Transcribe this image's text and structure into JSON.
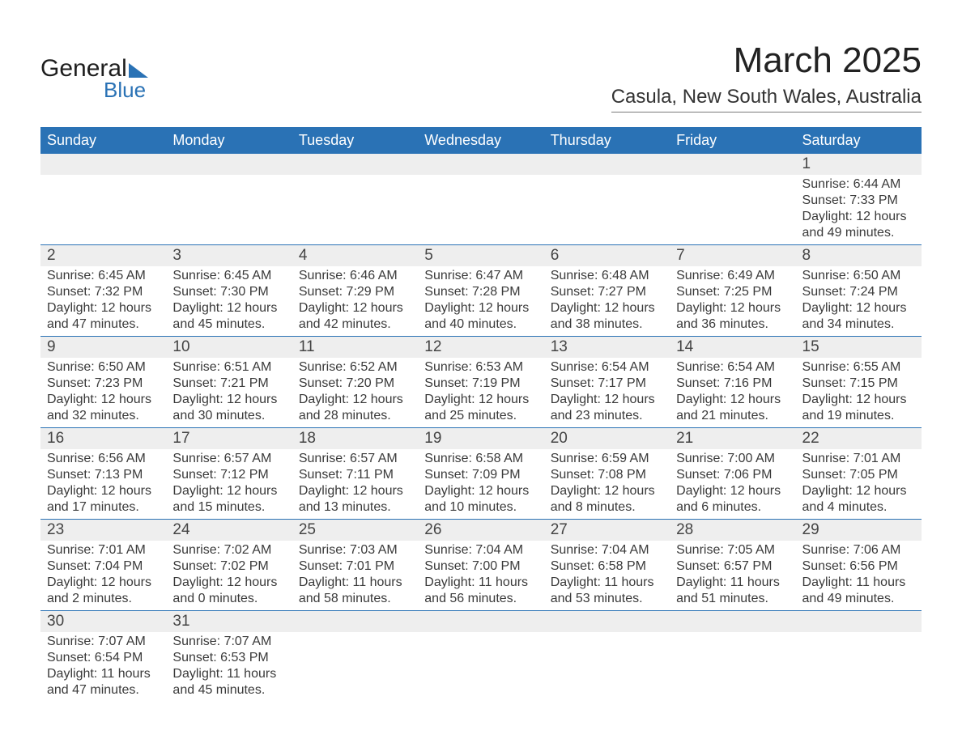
{
  "logo": {
    "text_main": "General",
    "text_sub": "Blue",
    "accent_color": "#2a72b5"
  },
  "title": "March 2025",
  "location": "Casula, New South Wales, Australia",
  "header_bg": "#2a72b5",
  "daynum_bg": "#eeeeee",
  "text_color": "#3a3a3a",
  "day_headers": [
    "Sunday",
    "Monday",
    "Tuesday",
    "Wednesday",
    "Thursday",
    "Friday",
    "Saturday"
  ],
  "weeks": [
    {
      "nums": [
        "",
        "",
        "",
        "",
        "",
        "",
        "1"
      ],
      "cells": [
        {
          "sunrise": "",
          "sunset": "",
          "daylight": ""
        },
        {
          "sunrise": "",
          "sunset": "",
          "daylight": ""
        },
        {
          "sunrise": "",
          "sunset": "",
          "daylight": ""
        },
        {
          "sunrise": "",
          "sunset": "",
          "daylight": ""
        },
        {
          "sunrise": "",
          "sunset": "",
          "daylight": ""
        },
        {
          "sunrise": "",
          "sunset": "",
          "daylight": ""
        },
        {
          "sunrise": "Sunrise: 6:44 AM",
          "sunset": "Sunset: 7:33 PM",
          "daylight": "Daylight: 12 hours and 49 minutes."
        }
      ]
    },
    {
      "nums": [
        "2",
        "3",
        "4",
        "5",
        "6",
        "7",
        "8"
      ],
      "cells": [
        {
          "sunrise": "Sunrise: 6:45 AM",
          "sunset": "Sunset: 7:32 PM",
          "daylight": "Daylight: 12 hours and 47 minutes."
        },
        {
          "sunrise": "Sunrise: 6:45 AM",
          "sunset": "Sunset: 7:30 PM",
          "daylight": "Daylight: 12 hours and 45 minutes."
        },
        {
          "sunrise": "Sunrise: 6:46 AM",
          "sunset": "Sunset: 7:29 PM",
          "daylight": "Daylight: 12 hours and 42 minutes."
        },
        {
          "sunrise": "Sunrise: 6:47 AM",
          "sunset": "Sunset: 7:28 PM",
          "daylight": "Daylight: 12 hours and 40 minutes."
        },
        {
          "sunrise": "Sunrise: 6:48 AM",
          "sunset": "Sunset: 7:27 PM",
          "daylight": "Daylight: 12 hours and 38 minutes."
        },
        {
          "sunrise": "Sunrise: 6:49 AM",
          "sunset": "Sunset: 7:25 PM",
          "daylight": "Daylight: 12 hours and 36 minutes."
        },
        {
          "sunrise": "Sunrise: 6:50 AM",
          "sunset": "Sunset: 7:24 PM",
          "daylight": "Daylight: 12 hours and 34 minutes."
        }
      ]
    },
    {
      "nums": [
        "9",
        "10",
        "11",
        "12",
        "13",
        "14",
        "15"
      ],
      "cells": [
        {
          "sunrise": "Sunrise: 6:50 AM",
          "sunset": "Sunset: 7:23 PM",
          "daylight": "Daylight: 12 hours and 32 minutes."
        },
        {
          "sunrise": "Sunrise: 6:51 AM",
          "sunset": "Sunset: 7:21 PM",
          "daylight": "Daylight: 12 hours and 30 minutes."
        },
        {
          "sunrise": "Sunrise: 6:52 AM",
          "sunset": "Sunset: 7:20 PM",
          "daylight": "Daylight: 12 hours and 28 minutes."
        },
        {
          "sunrise": "Sunrise: 6:53 AM",
          "sunset": "Sunset: 7:19 PM",
          "daylight": "Daylight: 12 hours and 25 minutes."
        },
        {
          "sunrise": "Sunrise: 6:54 AM",
          "sunset": "Sunset: 7:17 PM",
          "daylight": "Daylight: 12 hours and 23 minutes."
        },
        {
          "sunrise": "Sunrise: 6:54 AM",
          "sunset": "Sunset: 7:16 PM",
          "daylight": "Daylight: 12 hours and 21 minutes."
        },
        {
          "sunrise": "Sunrise: 6:55 AM",
          "sunset": "Sunset: 7:15 PM",
          "daylight": "Daylight: 12 hours and 19 minutes."
        }
      ]
    },
    {
      "nums": [
        "16",
        "17",
        "18",
        "19",
        "20",
        "21",
        "22"
      ],
      "cells": [
        {
          "sunrise": "Sunrise: 6:56 AM",
          "sunset": "Sunset: 7:13 PM",
          "daylight": "Daylight: 12 hours and 17 minutes."
        },
        {
          "sunrise": "Sunrise: 6:57 AM",
          "sunset": "Sunset: 7:12 PM",
          "daylight": "Daylight: 12 hours and 15 minutes."
        },
        {
          "sunrise": "Sunrise: 6:57 AM",
          "sunset": "Sunset: 7:11 PM",
          "daylight": "Daylight: 12 hours and 13 minutes."
        },
        {
          "sunrise": "Sunrise: 6:58 AM",
          "sunset": "Sunset: 7:09 PM",
          "daylight": "Daylight: 12 hours and 10 minutes."
        },
        {
          "sunrise": "Sunrise: 6:59 AM",
          "sunset": "Sunset: 7:08 PM",
          "daylight": "Daylight: 12 hours and 8 minutes."
        },
        {
          "sunrise": "Sunrise: 7:00 AM",
          "sunset": "Sunset: 7:06 PM",
          "daylight": "Daylight: 12 hours and 6 minutes."
        },
        {
          "sunrise": "Sunrise: 7:01 AM",
          "sunset": "Sunset: 7:05 PM",
          "daylight": "Daylight: 12 hours and 4 minutes."
        }
      ]
    },
    {
      "nums": [
        "23",
        "24",
        "25",
        "26",
        "27",
        "28",
        "29"
      ],
      "cells": [
        {
          "sunrise": "Sunrise: 7:01 AM",
          "sunset": "Sunset: 7:04 PM",
          "daylight": "Daylight: 12 hours and 2 minutes."
        },
        {
          "sunrise": "Sunrise: 7:02 AM",
          "sunset": "Sunset: 7:02 PM",
          "daylight": "Daylight: 12 hours and 0 minutes."
        },
        {
          "sunrise": "Sunrise: 7:03 AM",
          "sunset": "Sunset: 7:01 PM",
          "daylight": "Daylight: 11 hours and 58 minutes."
        },
        {
          "sunrise": "Sunrise: 7:04 AM",
          "sunset": "Sunset: 7:00 PM",
          "daylight": "Daylight: 11 hours and 56 minutes."
        },
        {
          "sunrise": "Sunrise: 7:04 AM",
          "sunset": "Sunset: 6:58 PM",
          "daylight": "Daylight: 11 hours and 53 minutes."
        },
        {
          "sunrise": "Sunrise: 7:05 AM",
          "sunset": "Sunset: 6:57 PM",
          "daylight": "Daylight: 11 hours and 51 minutes."
        },
        {
          "sunrise": "Sunrise: 7:06 AM",
          "sunset": "Sunset: 6:56 PM",
          "daylight": "Daylight: 11 hours and 49 minutes."
        }
      ]
    },
    {
      "nums": [
        "30",
        "31",
        "",
        "",
        "",
        "",
        ""
      ],
      "cells": [
        {
          "sunrise": "Sunrise: 7:07 AM",
          "sunset": "Sunset: 6:54 PM",
          "daylight": "Daylight: 11 hours and 47 minutes."
        },
        {
          "sunrise": "Sunrise: 7:07 AM",
          "sunset": "Sunset: 6:53 PM",
          "daylight": "Daylight: 11 hours and 45 minutes."
        },
        {
          "sunrise": "",
          "sunset": "",
          "daylight": ""
        },
        {
          "sunrise": "",
          "sunset": "",
          "daylight": ""
        },
        {
          "sunrise": "",
          "sunset": "",
          "daylight": ""
        },
        {
          "sunrise": "",
          "sunset": "",
          "daylight": ""
        },
        {
          "sunrise": "",
          "sunset": "",
          "daylight": ""
        }
      ]
    }
  ]
}
